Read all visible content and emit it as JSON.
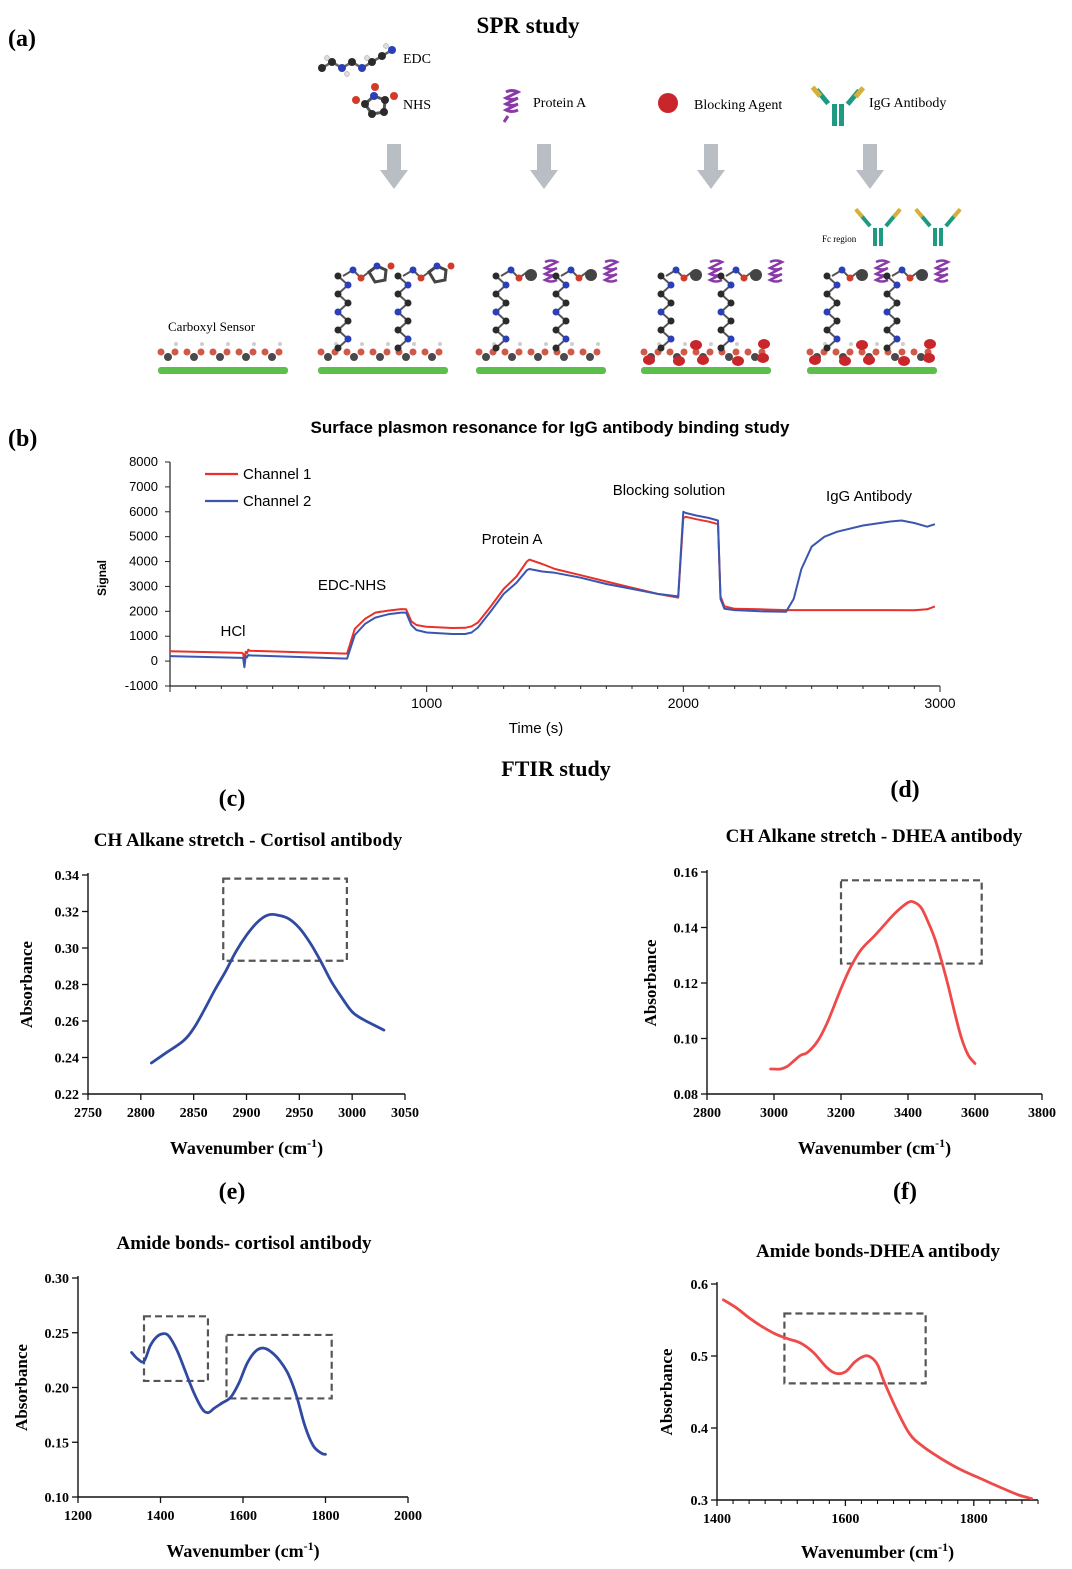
{
  "panel_a": {
    "label": "(a)",
    "title": "SPR study",
    "reagents": {
      "edc": "EDC",
      "nhs": "NHS",
      "protein_a": "Protein A",
      "blocking": "Blocking Agent",
      "igg": "IgG Antibody"
    },
    "sensor_label": "Carboxyl Sensor",
    "fc_label": "Fc region"
  },
  "ftir_title": "FTIR study",
  "chart_data": [
    {
      "id": "b",
      "panel_label": "(b)",
      "type": "line",
      "title": "Surface plasmon resonance for IgG antibody binding study",
      "xlabel": "Time (s)",
      "ylabel": "Signal",
      "xlim": [
        0,
        3000
      ],
      "ylim": [
        -1000,
        8000
      ],
      "xticks": [
        1000,
        2000,
        3000
      ],
      "yticks": [
        -1000,
        0,
        1000,
        2000,
        3000,
        4000,
        5000,
        6000,
        7000,
        8000
      ],
      "legend_position": "top-left",
      "annotations": [
        "HCl",
        "EDC-NHS",
        "Protein A",
        "Blocking solution",
        "IgG Antibody"
      ],
      "series": [
        {
          "name": "Channel 1",
          "color": "#e8312a",
          "x": [
            0,
            280,
            285,
            290,
            295,
            300,
            305,
            310,
            690,
            720,
            760,
            800,
            850,
            900,
            920,
            940,
            960,
            1000,
            1100,
            1150,
            1175,
            1200,
            1250,
            1300,
            1350,
            1390,
            1400,
            1450,
            1500,
            1600,
            1700,
            1800,
            1900,
            1980,
            2000,
            2010,
            2050,
            2100,
            2135,
            2145,
            2160,
            2200,
            2300,
            2400,
            2500,
            2600,
            2700,
            2800,
            2900,
            2950,
            2980
          ],
          "y": [
            400,
            330,
            300,
            -80,
            380,
            320,
            460,
            420,
            300,
            1300,
            1700,
            1950,
            2030,
            2090,
            2080,
            1600,
            1450,
            1380,
            1330,
            1340,
            1400,
            1550,
            2200,
            2900,
            3400,
            4000,
            4080,
            3900,
            3700,
            3450,
            3200,
            2950,
            2700,
            2550,
            5750,
            5800,
            5700,
            5600,
            5500,
            2600,
            2200,
            2100,
            2080,
            2050,
            2050,
            2050,
            2050,
            2050,
            2040,
            2080,
            2200
          ]
        },
        {
          "name": "Channel 2",
          "color": "#3a56b0",
          "x": [
            0,
            280,
            285,
            290,
            295,
            300,
            305,
            310,
            690,
            720,
            760,
            800,
            850,
            900,
            920,
            940,
            960,
            1000,
            1100,
            1150,
            1175,
            1200,
            1250,
            1300,
            1350,
            1390,
            1400,
            1450,
            1500,
            1600,
            1700,
            1800,
            1900,
            1980,
            2000,
            2010,
            2050,
            2100,
            2135,
            2145,
            2160,
            2200,
            2300,
            2400,
            2430,
            2460,
            2500,
            2550,
            2600,
            2700,
            2800,
            2850,
            2900,
            2950,
            2980
          ],
          "y": [
            200,
            130,
            100,
            -250,
            200,
            150,
            250,
            230,
            100,
            1050,
            1500,
            1750,
            1880,
            1950,
            1950,
            1450,
            1250,
            1150,
            1090,
            1090,
            1150,
            1350,
            2000,
            2700,
            3150,
            3650,
            3700,
            3600,
            3550,
            3350,
            3100,
            2900,
            2700,
            2600,
            6000,
            5950,
            5850,
            5750,
            5650,
            2500,
            2100,
            2050,
            2000,
            1980,
            2500,
            3700,
            4600,
            5000,
            5200,
            5450,
            5600,
            5650,
            5550,
            5400,
            5500
          ]
        }
      ]
    },
    {
      "id": "c",
      "panel_label": "(c)",
      "type": "line",
      "title": "CH Alkane stretch - Cortisol antibody",
      "xlabel": "Wavenumber (cm",
      "xlabel_sup": "-1",
      "xlabel_tail": ")",
      "ylabel": "Absorbance",
      "xlim": [
        2750,
        3050
      ],
      "ylim": [
        0.22,
        0.34
      ],
      "xticks": [
        2750,
        2800,
        2850,
        2900,
        2950,
        3000,
        3050
      ],
      "yticks": [
        0.22,
        0.24,
        0.26,
        0.28,
        0.3,
        0.32,
        0.34
      ],
      "ytick_decimals": 2,
      "highlight": {
        "x": [
          2878,
          2995
        ],
        "y": [
          0.293,
          0.338
        ]
      },
      "series": [
        {
          "color": "#2f4aa0",
          "x": [
            2810,
            2825,
            2840,
            2850,
            2860,
            2870,
            2880,
            2890,
            2900,
            2910,
            2920,
            2930,
            2940,
            2950,
            2960,
            2970,
            2980,
            2990,
            3000,
            3010,
            3020,
            3030
          ],
          "y": [
            0.237,
            0.243,
            0.249,
            0.256,
            0.266,
            0.277,
            0.287,
            0.298,
            0.307,
            0.314,
            0.318,
            0.318,
            0.316,
            0.311,
            0.303,
            0.293,
            0.282,
            0.273,
            0.265,
            0.261,
            0.258,
            0.255
          ]
        }
      ]
    },
    {
      "id": "d",
      "panel_label": "(d)",
      "type": "line",
      "title": "CH Alkane stretch - DHEA antibody",
      "xlabel": "Wavenumber (cm",
      "xlabel_sup": "-1",
      "xlabel_tail": ")",
      "ylabel": "Absorbance",
      "xlim": [
        2800,
        3800
      ],
      "ylim": [
        0.08,
        0.16
      ],
      "xticks": [
        2800,
        3000,
        3200,
        3400,
        3600,
        3800
      ],
      "yticks": [
        0.08,
        0.1,
        0.12,
        0.14,
        0.16
      ],
      "ytick_decimals": 2,
      "highlight": {
        "x": [
          3200,
          3620
        ],
        "y": [
          0.127,
          0.157
        ]
      },
      "series": [
        {
          "color": "#ef4a4a",
          "x": [
            2990,
            3000,
            3020,
            3040,
            3060,
            3080,
            3100,
            3130,
            3160,
            3200,
            3230,
            3260,
            3300,
            3330,
            3360,
            3400,
            3420,
            3440,
            3460,
            3480,
            3500,
            3520,
            3540,
            3560,
            3580,
            3600
          ],
          "y": [
            0.089,
            0.089,
            0.089,
            0.09,
            0.092,
            0.094,
            0.095,
            0.099,
            0.106,
            0.118,
            0.126,
            0.132,
            0.137,
            0.141,
            0.145,
            0.149,
            0.149,
            0.147,
            0.142,
            0.136,
            0.128,
            0.119,
            0.109,
            0.1,
            0.094,
            0.091
          ]
        }
      ]
    },
    {
      "id": "e",
      "panel_label": "(e)",
      "type": "line",
      "title": "Amide bonds- cortisol antibody",
      "xlabel": "Wavenumber (cm",
      "xlabel_sup": "-1",
      "xlabel_tail": ")",
      "ylabel": "Absorbance",
      "xlim": [
        1200,
        2000
      ],
      "ylim": [
        0.1,
        0.3
      ],
      "xticks": [
        1200,
        1400,
        1600,
        1800,
        2000
      ],
      "yticks": [
        0.1,
        0.15,
        0.2,
        0.25,
        0.3
      ],
      "ytick_decimals": 2,
      "highlights": [
        {
          "x": [
            1360,
            1515
          ],
          "y": [
            0.206,
            0.265
          ]
        },
        {
          "x": [
            1560,
            1815
          ],
          "y": [
            0.19,
            0.248
          ]
        }
      ],
      "series": [
        {
          "color": "#2f4aa0",
          "x": [
            1330,
            1345,
            1360,
            1375,
            1390,
            1405,
            1420,
            1440,
            1460,
            1480,
            1500,
            1515,
            1530,
            1550,
            1570,
            1590,
            1610,
            1630,
            1650,
            1670,
            1690,
            1710,
            1730,
            1750,
            1770,
            1790,
            1800
          ],
          "y": [
            0.232,
            0.226,
            0.224,
            0.238,
            0.246,
            0.249,
            0.247,
            0.234,
            0.215,
            0.196,
            0.181,
            0.177,
            0.181,
            0.186,
            0.191,
            0.204,
            0.222,
            0.233,
            0.236,
            0.232,
            0.224,
            0.212,
            0.192,
            0.165,
            0.147,
            0.14,
            0.139
          ]
        }
      ]
    },
    {
      "id": "f",
      "panel_label": "(f)",
      "type": "line",
      "title": "Amide bonds-DHEA antibody",
      "xlabel": "Wavenumber (cm",
      "xlabel_sup": "-1",
      "xlabel_tail": ")",
      "ylabel": "Absorbance",
      "xlim": [
        1400,
        1900
      ],
      "ylim": [
        0.3,
        0.6
      ],
      "xticks": [
        1400,
        1600,
        1800
      ],
      "yticks": [
        0.3,
        0.4,
        0.5,
        0.6
      ],
      "ytick_decimals": 1,
      "minor_xticks": true,
      "highlight": {
        "x": [
          1505,
          1725
        ],
        "y": [
          0.462,
          0.559
        ]
      },
      "series": [
        {
          "color": "#ef4a4a",
          "x": [
            1410,
            1430,
            1450,
            1470,
            1490,
            1510,
            1530,
            1550,
            1570,
            1585,
            1600,
            1615,
            1630,
            1640,
            1650,
            1660,
            1680,
            1700,
            1720,
            1750,
            1780,
            1810,
            1840,
            1870,
            1890
          ],
          "y": [
            0.578,
            0.567,
            0.553,
            0.541,
            0.531,
            0.524,
            0.518,
            0.505,
            0.485,
            0.476,
            0.478,
            0.492,
            0.5,
            0.498,
            0.488,
            0.465,
            0.425,
            0.392,
            0.375,
            0.357,
            0.342,
            0.33,
            0.318,
            0.307,
            0.302
          ]
        }
      ]
    }
  ],
  "colors": {
    "sensor_green": "#5cbf4b",
    "arrow_gray": "#b9bec4",
    "protein_purple": "#8a3aa8",
    "blocking_red": "#c8262b",
    "antibody_green": "#1f9a82",
    "antibody_gold": "#d6b13a",
    "highlight_box": "#555555"
  }
}
